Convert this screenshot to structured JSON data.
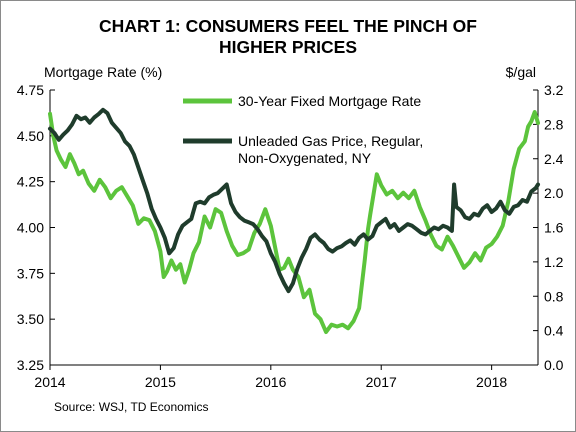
{
  "chart_data": {
    "type": "line",
    "title_line1": "CHART 1: CONSUMERS FEEL THE PINCH OF",
    "title_line2": "HIGHER PRICES",
    "y_left_label": "Mortgage Rate (%)",
    "y_right_label": "$/gal",
    "source": "Source: WSJ, TD Economics",
    "x_ticks": [
      "2014",
      "2015",
      "2016",
      "2017",
      "2018"
    ],
    "x_range": [
      2014.0,
      2018.42
    ],
    "y_left_ticks": [
      "4.75",
      "4.50",
      "4.25",
      "4.00",
      "3.75",
      "3.50",
      "3.25"
    ],
    "y_left_range": [
      3.25,
      4.75
    ],
    "y_right_ticks": [
      "3.2",
      "2.8",
      "2.4",
      "2.0",
      "1.6",
      "1.2",
      "0.8",
      "0.4",
      "0.0"
    ],
    "y_right_range": [
      0.0,
      3.2
    ],
    "grid": false,
    "legend_position": "top-center",
    "series": [
      {
        "name": "30-Year Fixed Mortgage Rate",
        "axis": "left",
        "color": "#5cc43c",
        "x": [
          2014.0,
          2014.03,
          2014.06,
          2014.1,
          2014.14,
          2014.18,
          2014.22,
          2014.26,
          2014.3,
          2014.35,
          2014.4,
          2014.45,
          2014.5,
          2014.55,
          2014.6,
          2014.65,
          2014.7,
          2014.75,
          2014.8,
          2014.85,
          2014.9,
          2014.95,
          2015.0,
          2015.03,
          2015.06,
          2015.1,
          2015.14,
          2015.18,
          2015.22,
          2015.26,
          2015.3,
          2015.35,
          2015.4,
          2015.45,
          2015.5,
          2015.55,
          2015.6,
          2015.65,
          2015.7,
          2015.75,
          2015.8,
          2015.85,
          2015.9,
          2015.95,
          2016.0,
          2016.04,
          2016.08,
          2016.12,
          2016.16,
          2016.2,
          2016.25,
          2016.3,
          2016.35,
          2016.4,
          2016.45,
          2016.5,
          2016.55,
          2016.6,
          2016.65,
          2016.7,
          2016.75,
          2016.8,
          2016.85,
          2016.88,
          2016.9,
          2016.93,
          2016.96,
          2017.0,
          2017.05,
          2017.1,
          2017.15,
          2017.2,
          2017.25,
          2017.3,
          2017.35,
          2017.4,
          2017.45,
          2017.5,
          2017.55,
          2017.6,
          2017.65,
          2017.7,
          2017.75,
          2017.8,
          2017.85,
          2017.9,
          2017.95,
          2018.0,
          2018.05,
          2018.1,
          2018.15,
          2018.2,
          2018.25,
          2018.3,
          2018.33,
          2018.36,
          2018.39,
          2018.42
        ],
        "values": [
          4.62,
          4.5,
          4.42,
          4.37,
          4.33,
          4.4,
          4.35,
          4.29,
          4.31,
          4.24,
          4.2,
          4.26,
          4.22,
          4.16,
          4.2,
          4.22,
          4.17,
          4.12,
          4.02,
          4.05,
          4.04,
          3.98,
          3.87,
          3.73,
          3.76,
          3.82,
          3.77,
          3.8,
          3.7,
          3.77,
          3.86,
          3.92,
          4.06,
          4.0,
          4.1,
          4.08,
          3.98,
          3.9,
          3.85,
          3.86,
          3.88,
          3.97,
          4.02,
          4.1,
          4.01,
          3.89,
          3.77,
          3.78,
          3.83,
          3.77,
          3.73,
          3.62,
          3.66,
          3.53,
          3.5,
          3.43,
          3.47,
          3.46,
          3.47,
          3.45,
          3.49,
          3.56,
          3.82,
          3.99,
          4.07,
          4.18,
          4.29,
          4.23,
          4.18,
          4.2,
          4.16,
          4.19,
          4.16,
          4.2,
          4.11,
          4.04,
          3.96,
          3.9,
          3.88,
          3.95,
          3.9,
          3.84,
          3.78,
          3.81,
          3.86,
          3.82,
          3.89,
          3.91,
          3.95,
          4.01,
          4.14,
          4.32,
          4.43,
          4.47,
          4.55,
          4.58,
          4.63,
          4.57
        ]
      },
      {
        "name": "Unleaded Gas Price, Regular, Non-Oxygenated, NY",
        "axis": "right",
        "color": "#1f3c2c",
        "x": [
          2014.0,
          2014.04,
          2014.08,
          2014.12,
          2014.16,
          2014.2,
          2014.24,
          2014.28,
          2014.32,
          2014.36,
          2014.4,
          2014.44,
          2014.48,
          2014.52,
          2014.56,
          2014.6,
          2014.64,
          2014.68,
          2014.72,
          2014.76,
          2014.8,
          2014.84,
          2014.88,
          2014.92,
          2014.96,
          2015.0,
          2015.04,
          2015.08,
          2015.12,
          2015.16,
          2015.2,
          2015.24,
          2015.28,
          2015.32,
          2015.36,
          2015.4,
          2015.44,
          2015.48,
          2015.52,
          2015.56,
          2015.6,
          2015.64,
          2015.68,
          2015.72,
          2015.76,
          2015.8,
          2015.84,
          2015.88,
          2015.92,
          2015.96,
          2016.0,
          2016.04,
          2016.08,
          2016.12,
          2016.16,
          2016.2,
          2016.24,
          2016.28,
          2016.32,
          2016.36,
          2016.4,
          2016.44,
          2016.48,
          2016.52,
          2016.56,
          2016.6,
          2016.64,
          2016.68,
          2016.72,
          2016.76,
          2016.8,
          2016.84,
          2016.88,
          2016.92,
          2016.96,
          2017.0,
          2017.04,
          2017.08,
          2017.12,
          2017.16,
          2017.2,
          2017.24,
          2017.28,
          2017.32,
          2017.36,
          2017.4,
          2017.44,
          2017.48,
          2017.52,
          2017.56,
          2017.6,
          2017.64,
          2017.66,
          2017.68,
          2017.72,
          2017.76,
          2017.8,
          2017.84,
          2017.88,
          2017.92,
          2017.96,
          2018.0,
          2018.04,
          2018.08,
          2018.12,
          2018.16,
          2018.2,
          2018.24,
          2018.28,
          2018.32,
          2018.36,
          2018.4,
          2018.42
        ],
        "values": [
          2.75,
          2.7,
          2.62,
          2.68,
          2.73,
          2.8,
          2.9,
          2.86,
          2.88,
          2.82,
          2.88,
          2.92,
          2.97,
          2.93,
          2.82,
          2.76,
          2.7,
          2.6,
          2.55,
          2.45,
          2.3,
          2.15,
          2.0,
          1.82,
          1.7,
          1.6,
          1.48,
          1.3,
          1.36,
          1.52,
          1.62,
          1.66,
          1.7,
          1.88,
          1.9,
          1.88,
          1.95,
          1.98,
          2.0,
          2.05,
          2.1,
          1.88,
          1.78,
          1.72,
          1.68,
          1.66,
          1.64,
          1.58,
          1.5,
          1.44,
          1.3,
          1.2,
          1.06,
          0.95,
          0.86,
          0.95,
          1.12,
          1.25,
          1.35,
          1.48,
          1.52,
          1.46,
          1.42,
          1.35,
          1.32,
          1.36,
          1.38,
          1.42,
          1.45,
          1.4,
          1.48,
          1.52,
          1.46,
          1.5,
          1.62,
          1.66,
          1.7,
          1.6,
          1.64,
          1.56,
          1.6,
          1.64,
          1.62,
          1.58,
          1.54,
          1.52,
          1.56,
          1.6,
          1.58,
          1.62,
          1.6,
          1.56,
          2.1,
          1.84,
          1.8,
          1.72,
          1.7,
          1.76,
          1.74,
          1.82,
          1.86,
          1.78,
          1.82,
          1.9,
          1.8,
          1.76,
          1.84,
          1.86,
          1.92,
          1.9,
          2.02,
          2.06,
          2.1
        ]
      }
    ]
  }
}
